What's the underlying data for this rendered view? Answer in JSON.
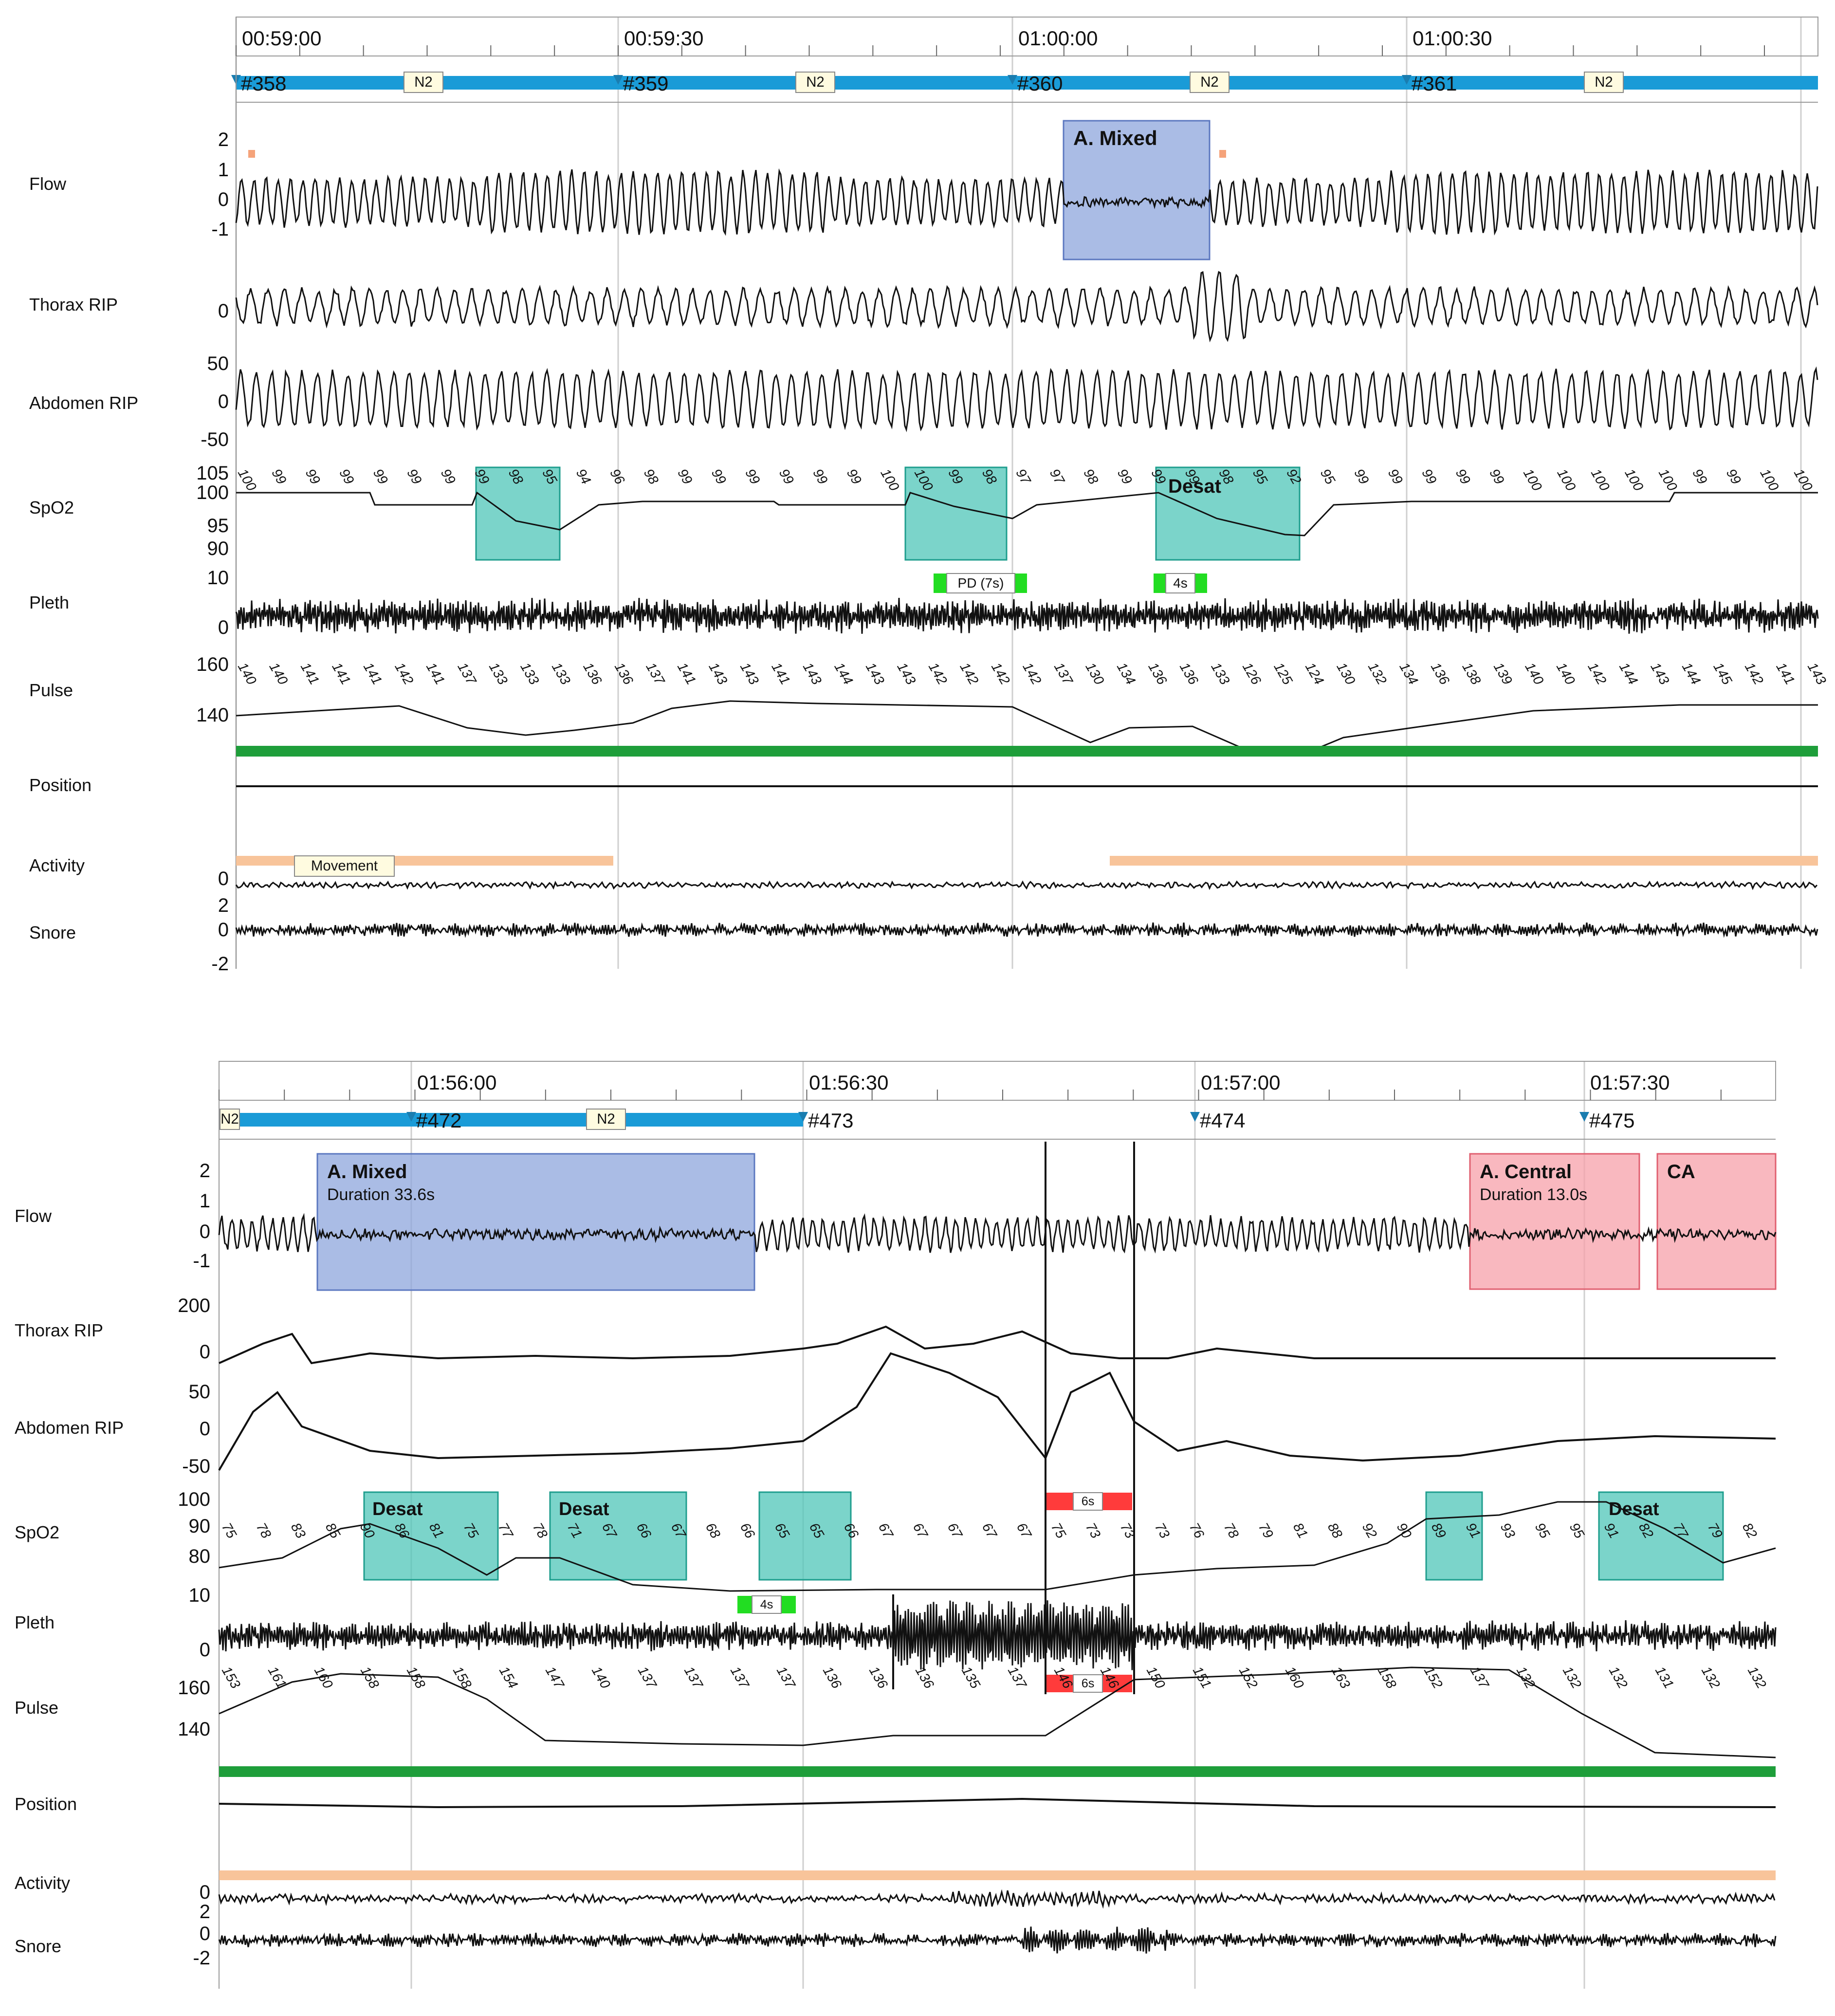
{
  "panels": [
    {
      "id": "top",
      "times": [
        "00:59:00",
        "00:59:30",
        "01:00:00",
        "01:00:30"
      ],
      "epochs": [
        "#358",
        "#359",
        "#360",
        "#361"
      ],
      "stage": "N2",
      "channels": [
        {
          "key": "flow",
          "label": "Flow",
          "ticks": [
            "2",
            "1",
            "0",
            "-1"
          ]
        },
        {
          "key": "thorax",
          "label": "Thorax RIP",
          "ticks": [
            "0"
          ]
        },
        {
          "key": "abdomen",
          "label": "Abdomen RIP",
          "ticks": [
            "50",
            "0",
            "-50"
          ]
        },
        {
          "key": "spo2",
          "label": "SpO2",
          "ticks": [
            "105",
            "100",
            "95",
            "90"
          ]
        },
        {
          "key": "pleth",
          "label": "Pleth",
          "ticks": [
            "10",
            "0"
          ]
        },
        {
          "key": "pulse",
          "label": "Pulse",
          "ticks": [
            "160",
            "140"
          ]
        },
        {
          "key": "position",
          "label": "Position",
          "ticks": []
        },
        {
          "key": "activity",
          "label": "Activity",
          "ticks": [
            "0"
          ]
        },
        {
          "key": "snore",
          "label": "Snore",
          "ticks": [
            "2",
            "0",
            "-2"
          ]
        }
      ],
      "events": {
        "mixed_apnea": "A. Mixed",
        "desat_label": "Desat",
        "pd_marker": "PD (7s)",
        "short_marker": "4s",
        "movement": "Movement"
      },
      "spo2_values": [
        "100",
        "99",
        "99",
        "99",
        "99",
        "99",
        "99",
        "99",
        "98",
        "95",
        "94",
        "96",
        "98",
        "99",
        "99",
        "99",
        "99",
        "99",
        "99",
        "100",
        "100",
        "99",
        "98",
        "97",
        "97",
        "98",
        "99",
        "99",
        "99",
        "98",
        "95",
        "92",
        "95",
        "99",
        "99",
        "99",
        "99",
        "99",
        "100",
        "100",
        "100",
        "100",
        "100",
        "99",
        "99",
        "100",
        "100"
      ],
      "pulse_values": [
        "140",
        "140",
        "141",
        "141",
        "141",
        "142",
        "141",
        "137",
        "133",
        "133",
        "133",
        "136",
        "136",
        "137",
        "141",
        "143",
        "143",
        "141",
        "143",
        "144",
        "143",
        "143",
        "142",
        "142",
        "142",
        "142",
        "137",
        "130",
        "134",
        "136",
        "136",
        "133",
        "126",
        "125",
        "124",
        "130",
        "132",
        "134",
        "136",
        "138",
        "139",
        "140",
        "140",
        "142",
        "144",
        "143",
        "144",
        "145",
        "142",
        "141",
        "143"
      ]
    },
    {
      "id": "bottom",
      "times": [
        "01:56:00",
        "01:56:30",
        "01:57:00",
        "01:57:30"
      ],
      "epochs": [
        "#472",
        "#473",
        "#474",
        "#475"
      ],
      "stage": "N2",
      "stage_partial": "N2",
      "channels": [
        {
          "key": "flow",
          "label": "Flow",
          "ticks": [
            "2",
            "1",
            "0",
            "-1"
          ]
        },
        {
          "key": "thorax",
          "label": "Thorax RIP",
          "ticks": [
            "200",
            "0"
          ]
        },
        {
          "key": "abdomen",
          "label": "Abdomen RIP",
          "ticks": [
            "50",
            "0",
            "-50"
          ]
        },
        {
          "key": "spo2",
          "label": "SpO2",
          "ticks": [
            "100",
            "90",
            "80"
          ]
        },
        {
          "key": "pleth",
          "label": "Pleth",
          "ticks": [
            "10",
            "0"
          ]
        },
        {
          "key": "pulse",
          "label": "Pulse",
          "ticks": [
            "160",
            "140"
          ]
        },
        {
          "key": "position",
          "label": "Position",
          "ticks": []
        },
        {
          "key": "activity",
          "label": "Activity",
          "ticks": [
            "0"
          ]
        },
        {
          "key": "snore",
          "label": "Snore",
          "ticks": [
            "2",
            "0",
            "-2"
          ]
        }
      ],
      "events": {
        "mixed_apnea": "A. Mixed",
        "mixed_duration": "Duration 33.6s",
        "central_apnea": "A. Central",
        "central_duration": "Duration 13.0s",
        "ca_short": "CA",
        "desat_label": "Desat",
        "short_marker": "4s",
        "artifact_marker": "6s"
      },
      "spo2_values": [
        "75",
        "78",
        "83",
        "85",
        "90",
        "86",
        "81",
        "75",
        "77",
        "78",
        "71",
        "67",
        "66",
        "67",
        "68",
        "66",
        "65",
        "65",
        "66",
        "67",
        "67",
        "67",
        "67",
        "67",
        "75",
        "73",
        "73",
        "73",
        "76",
        "78",
        "79",
        "81",
        "88",
        "92",
        "90",
        "89",
        "91",
        "93",
        "95",
        "95",
        "91",
        "82",
        "77",
        "79",
        "82"
      ],
      "pulse_values": [
        "153",
        "161",
        "160",
        "158",
        "158",
        "158",
        "154",
        "147",
        "140",
        "137",
        "137",
        "137",
        "137",
        "136",
        "136",
        "136",
        "135",
        "137",
        "146",
        "146",
        "150",
        "151",
        "152",
        "160",
        "163",
        "158",
        "152",
        "137",
        "132",
        "132",
        "132",
        "131",
        "132",
        "132"
      ]
    }
  ]
}
